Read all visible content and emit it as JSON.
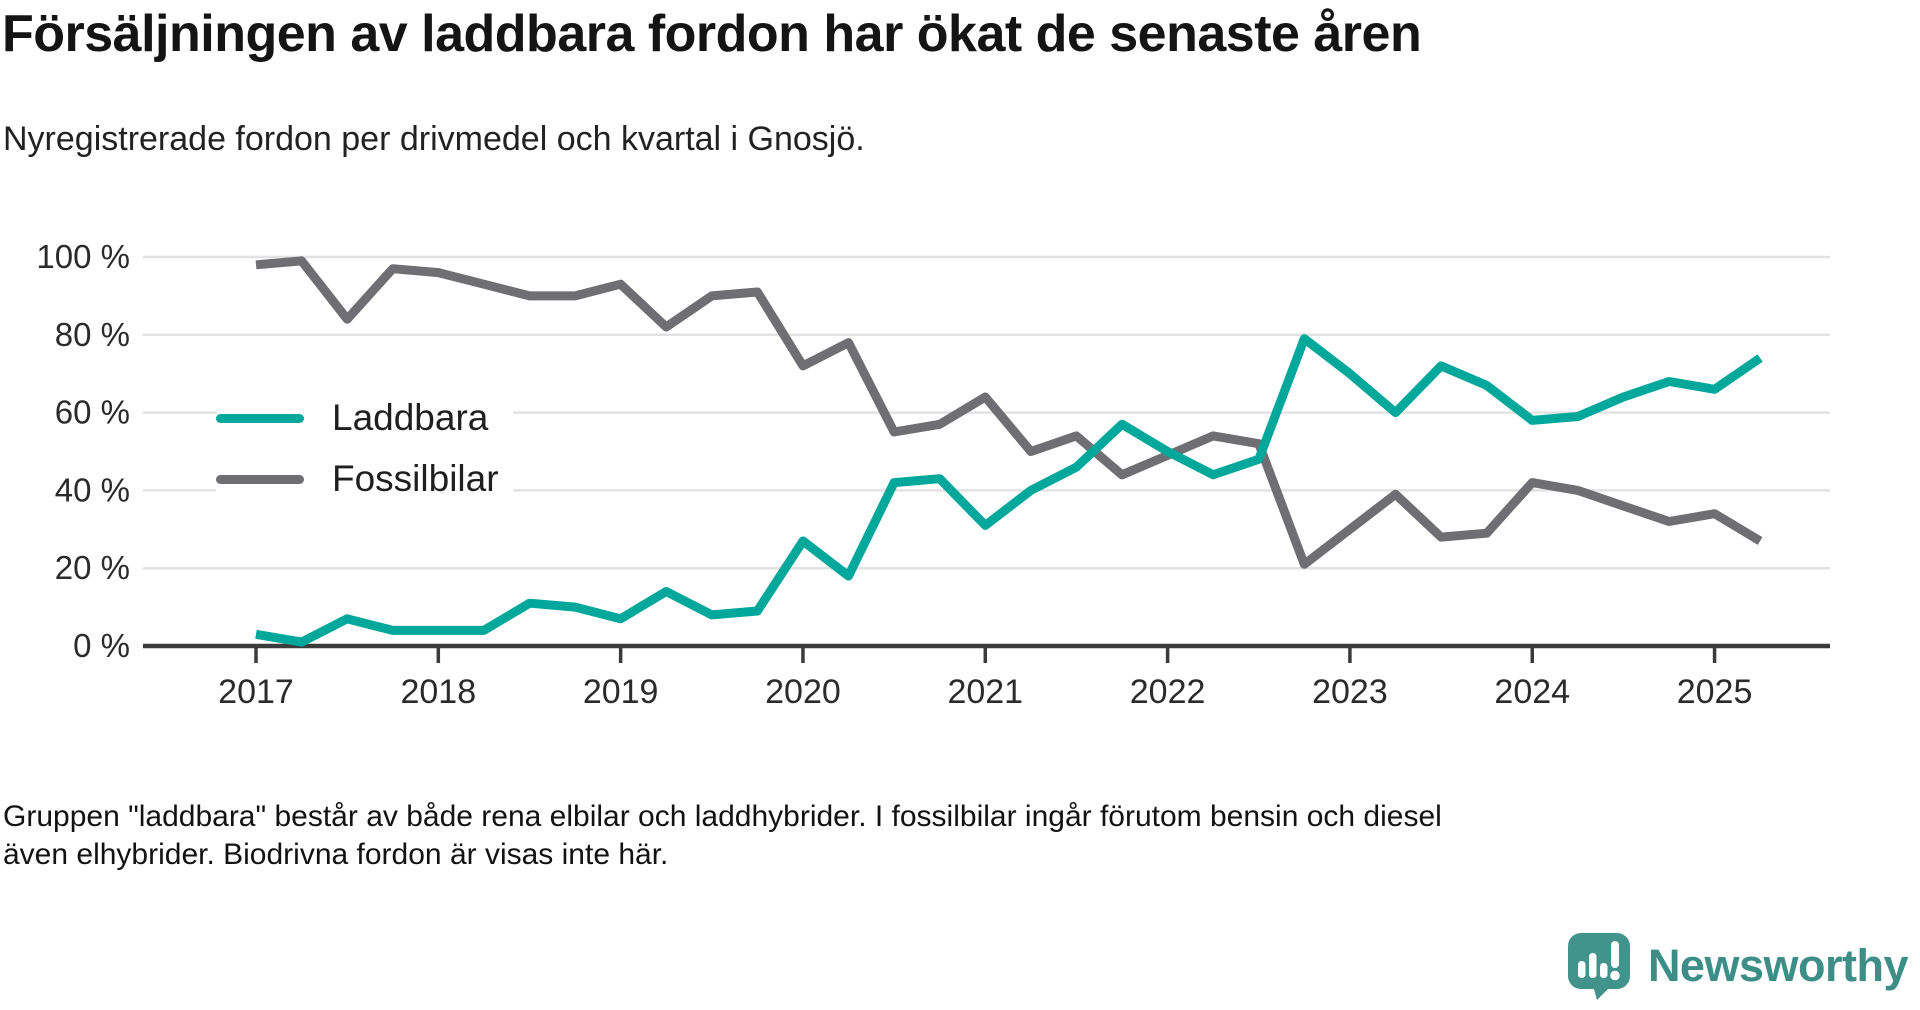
{
  "title": "Försäljningen av laddbara fordon har ökat de senaste åren",
  "subtitle": "Nyregistrerade fordon per drivmedel och kvartal i Gnosjö.",
  "footnote": "Gruppen \"laddbara\" består av både rena elbilar och laddhybrider. I fossilbilar ingår förutom bensin och diesel även elhybrider. Biodrivna fordon är visas inte här.",
  "logo": {
    "text": "Newsworthy",
    "icon": "newsworthy-speech-bubble-chart-icon",
    "color": "#42938C"
  },
  "colors": {
    "accent_teal": "#00A79B",
    "line_gray": "#6F6F73",
    "gridline": "#E2E2E2",
    "axis": "#3B3B3B",
    "text_dark": "#141414"
  },
  "chart_data": {
    "type": "line",
    "title": "Försäljningen av laddbara fordon har ökat de senaste åren",
    "subtitle": "Nyregistrerade fordon per drivmedel och kvartal i Gnosjö.",
    "x_unit": "quarter",
    "x_start": "2017 Q1",
    "x_end": "2025 Q2",
    "x_tick_labels": [
      "2017",
      "2018",
      "2019",
      "2020",
      "2021",
      "2022",
      "2023",
      "2024",
      "2025"
    ],
    "x_tick_quarter_offsets": [
      0,
      4,
      8,
      12,
      16,
      20,
      24,
      28,
      32
    ],
    "y_tick_values": [
      0,
      20,
      40,
      60,
      80,
      100
    ],
    "y_tick_labels": [
      "0 %",
      "20 %",
      "40 %",
      "60 %",
      "80 %",
      "100 %"
    ],
    "ylim": [
      0,
      100
    ],
    "grid": true,
    "legend_position": "inside-left",
    "series": [
      {
        "name": "Laddbara",
        "color": "#00A79B",
        "values": [
          3,
          1,
          7,
          4,
          4,
          4,
          11,
          10,
          7,
          14,
          8,
          9,
          27,
          18,
          42,
          43,
          31,
          40,
          46,
          57,
          50,
          44,
          48,
          79,
          70,
          60,
          72,
          67,
          58,
          59,
          64,
          68,
          66,
          74
        ]
      },
      {
        "name": "Fossilbilar",
        "color": "#6F6F73",
        "values": [
          98,
          99,
          84,
          97,
          96,
          93,
          90,
          90,
          93,
          82,
          90,
          91,
          72,
          78,
          55,
          57,
          64,
          50,
          54,
          44,
          49,
          54,
          52,
          21,
          30,
          39,
          28,
          29,
          42,
          40,
          36,
          32,
          34,
          27
        ]
      }
    ]
  }
}
